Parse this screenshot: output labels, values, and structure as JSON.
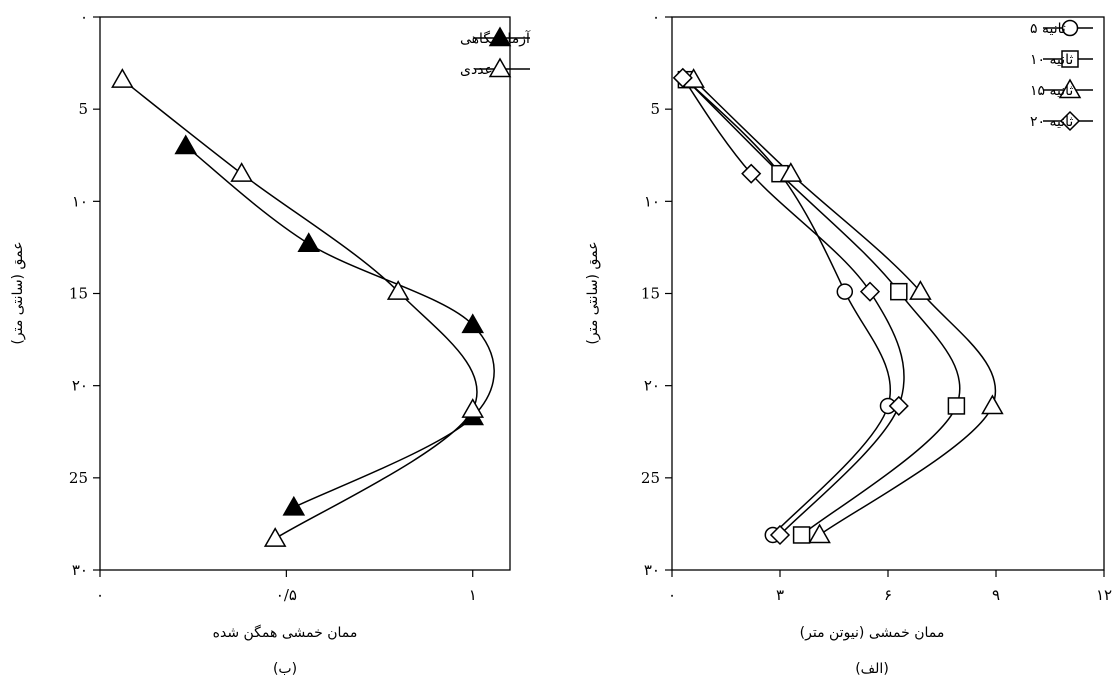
{
  "chart_data": [
    {
      "type": "line",
      "panel_label": "(ب)",
      "xlabel": "ممان خمشی همگن شده",
      "ylabel": "عمق (سانتی متر)",
      "xlim": [
        0,
        1.1
      ],
      "ylim": [
        30,
        0
      ],
      "x_ticks": [
        "۰",
        "۰/۵",
        "۱"
      ],
      "x_tick_values": [
        0,
        0.5,
        1
      ],
      "y_ticks": [
        "۰",
        "5",
        "۱۰",
        "15",
        "۲۰",
        "25",
        "۳۰"
      ],
      "y_tick_values": [
        0,
        5,
        10,
        15,
        20,
        25,
        30
      ],
      "legend_position": "top-right",
      "grid": false,
      "series": [
        {
          "name": "آزمایشگاهی",
          "marker": "triangle-filled",
          "color": "#000000",
          "depth": [
            7,
            12.3,
            16.7,
            21.7,
            26.6
          ],
          "x": [
            0.23,
            0.56,
            1.0,
            1.0,
            0.52
          ]
        },
        {
          "name": "عددی",
          "marker": "triangle-open",
          "color": "#000000",
          "depth": [
            3.4,
            8.5,
            14.9,
            21.3,
            28.3
          ],
          "x": [
            0.06,
            0.38,
            0.8,
            1.0,
            0.47
          ]
        }
      ]
    },
    {
      "type": "line",
      "panel_label": "(الف)",
      "xlabel": "ممان خمشی (نیوتن متر)",
      "ylabel": "عمق (سانتی متر)",
      "xlim": [
        0,
        12
      ],
      "ylim": [
        30,
        0
      ],
      "x_ticks": [
        "۰",
        "۳",
        "۶",
        "۹",
        "۱۲"
      ],
      "x_tick_values": [
        0,
        3,
        6,
        9,
        12
      ],
      "y_ticks": [
        "۰",
        "5",
        "۱۰",
        "15",
        "۲۰",
        "25",
        "۳۰"
      ],
      "y_tick_values": [
        0,
        5,
        10,
        15,
        20,
        25,
        30
      ],
      "legend_position": "top-right",
      "grid": false,
      "series": [
        {
          "name": "ثانیه ۵",
          "marker": "circle",
          "color": "#000000",
          "depth": [
            3.4,
            8.5,
            14.9,
            21.1,
            28.1
          ],
          "x": [
            0.4,
            3.0,
            4.8,
            6.0,
            2.8
          ]
        },
        {
          "name": "ثانیه ۱۰",
          "marker": "square",
          "color": "#000000",
          "depth": [
            3.4,
            8.5,
            14.9,
            21.1,
            28.1
          ],
          "x": [
            0.4,
            3.0,
            6.3,
            7.9,
            3.6
          ]
        },
        {
          "name": "ثانیه ۱۵",
          "marker": "triangle-open",
          "color": "#000000",
          "depth": [
            3.4,
            8.5,
            14.9,
            21.1,
            28.1
          ],
          "x": [
            0.6,
            3.3,
            6.9,
            8.9,
            4.1
          ]
        },
        {
          "name": "ثانیه ۲۰",
          "marker": "diamond",
          "color": "#000000",
          "depth": [
            3.3,
            8.5,
            14.9,
            21.1,
            28.1
          ],
          "x": [
            0.3,
            2.2,
            5.5,
            6.3,
            3.0
          ]
        }
      ]
    }
  ]
}
